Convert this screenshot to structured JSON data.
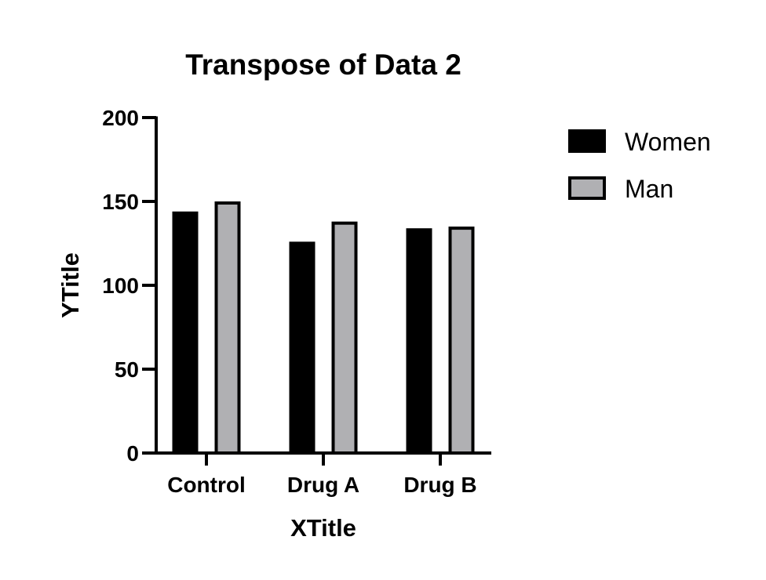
{
  "chart_data": {
    "type": "bar",
    "title": "Transpose of Data 2",
    "xlabel": "XTitle",
    "ylabel": "YTitle",
    "categories": [
      "Control",
      "Drug A",
      "Drug B"
    ],
    "series": [
      {
        "name": "Women",
        "values": [
          144,
          126,
          134
        ],
        "fill": "#000000",
        "stroke": "#000000"
      },
      {
        "name": "Man",
        "values": [
          150,
          138,
          135
        ],
        "fill": "#b0b0b3",
        "stroke": "#000000"
      }
    ],
    "ylim": [
      0,
      200
    ],
    "yticks": [
      0,
      50,
      100,
      150,
      200
    ],
    "grid": false,
    "legend": "top-right"
  }
}
